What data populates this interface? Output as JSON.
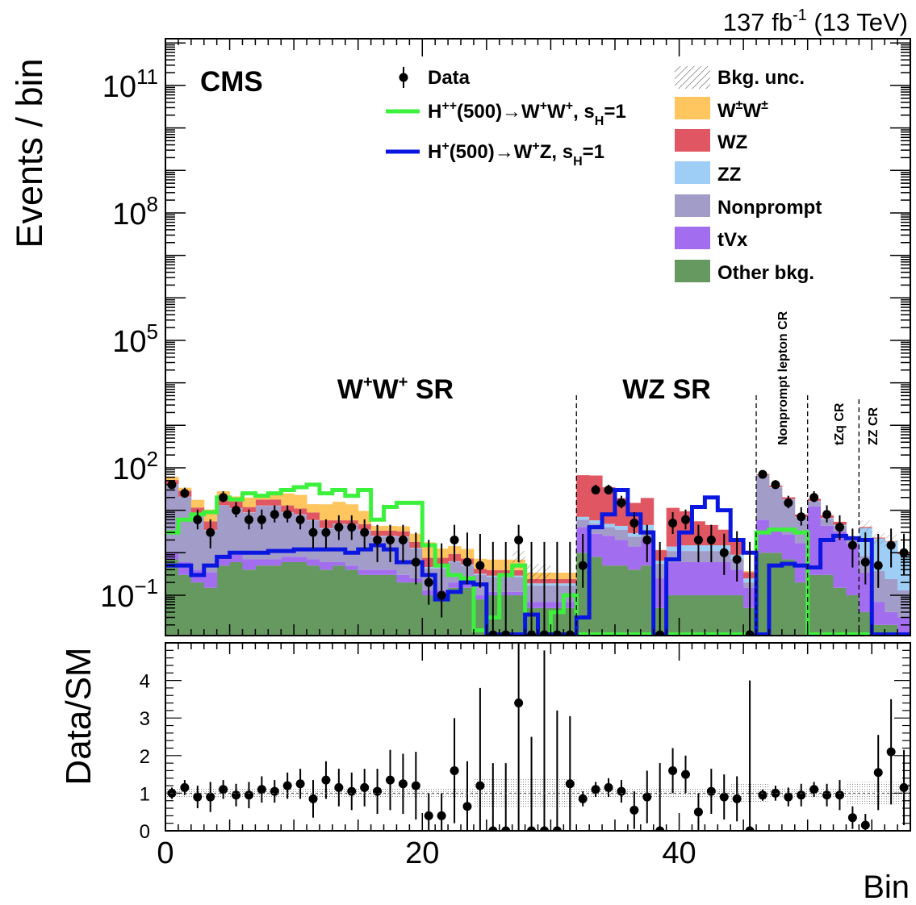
{
  "chart_data": {
    "type": "bar",
    "lumi_label": "137 fb",
    "lumi_sup": "-1",
    "lumi_energy": "(13 TeV)",
    "experiment": "CMS",
    "ylabel_top": "Events / bin",
    "ylabel_bottom": "Data/SM",
    "xlabel": "Bin",
    "x_ticks": [
      "0",
      "20",
      "40"
    ],
    "x_tick_values": [
      0,
      20,
      40
    ],
    "xlim": [
      0,
      58
    ],
    "top_ylim_log10": [
      -1.95,
      12.1
    ],
    "top_y_ticks": [
      {
        "base": "10",
        "exp": "11",
        "log": 11
      },
      {
        "base": "10",
        "exp": "8",
        "log": 8
      },
      {
        "base": "10",
        "exp": "5",
        "log": 5
      },
      {
        "base": "10",
        "exp": "2",
        "log": 2
      },
      {
        "base": "10",
        "exp": "−1",
        "log": -1
      }
    ],
    "ratio_ylim": [
      0,
      5
    ],
    "ratio_y_ticks": [
      "0",
      "1",
      "2",
      "3",
      "4"
    ],
    "colors": {
      "WpmWpm": "#ffc55e",
      "WZ": "#e05663",
      "ZZ": "#9ecdf5",
      "Nonprompt": "#a29cc9",
      "tVx": "#a36df0",
      "Other": "#65995f",
      "Hpp": "#3cf13c",
      "Hp": "#0a17e0"
    },
    "legend": {
      "data": "Data",
      "hpp": {
        "main": "H",
        "sup": "++",
        "rest": "(500)→W",
        "sup2": "+",
        "mid": "W",
        "sup3": "+",
        "tail": ", s",
        "sub": "H",
        "end": "=1"
      },
      "hp": {
        "main": "H",
        "sup": "+",
        "rest": "(500)→W",
        "sup2": "+",
        "mid": "Z, s",
        "sub": "H",
        "end": "=1"
      },
      "unc": "Bkg. unc.",
      "wpm": {
        "main": "W",
        "sup": "±",
        "mid": "W",
        "sup2": "±"
      },
      "wz": "WZ",
      "zz": "ZZ",
      "nonprompt": "Nonprompt",
      "tvx": "tVx",
      "other": "Other bkg."
    },
    "regions": {
      "wpwp": {
        "a": "W",
        "s1": "+",
        "b": "W",
        "s2": "+",
        "c": " SR"
      },
      "wz_sr": "WZ SR",
      "nonprompt_cr": "Nonprompt lepton CR",
      "tzq_cr": "tZq CR",
      "zz_cr": "ZZ CR"
    },
    "region_boundaries": [
      32,
      46,
      50,
      54
    ],
    "stack_order": [
      "Other",
      "tVx",
      "Nonprompt",
      "ZZ",
      "WZ",
      "WpmWpm"
    ],
    "series": [
      {
        "name": "Other bkg.",
        "key": "Other",
        "values": [
          0.7,
          0.3,
          0.2,
          0.15,
          0.5,
          0.6,
          0.4,
          0.5,
          0.5,
          0.6,
          0.6,
          0.5,
          0.4,
          0.5,
          0.4,
          0.3,
          0.3,
          0.3,
          0.2,
          0.2,
          0.1,
          0.1,
          0.15,
          0.15,
          0.08,
          0.1,
          0.1,
          0.1,
          0.05,
          0.05,
          0.05,
          0.05,
          1,
          0.8,
          0.5,
          0.5,
          0.4,
          0.5,
          0.05,
          0.1,
          0.1,
          0.1,
          0.1,
          0.1,
          0.1,
          0.05,
          1,
          1,
          0.7,
          0.2,
          0.3,
          0.3,
          0.15,
          0.1,
          0.04,
          0.02,
          0.02,
          0.01
        ]
      },
      {
        "name": "tVx",
        "key": "tVx",
        "values": [
          0.3,
          0.3,
          0.2,
          0.2,
          0.3,
          0.3,
          0.3,
          0.2,
          0.2,
          0.2,
          0.2,
          0.2,
          0.2,
          0.1,
          0.1,
          0.1,
          0.1,
          0.1,
          0.1,
          0.05,
          0.03,
          0.03,
          0.05,
          0.05,
          0.02,
          0.02,
          0.02,
          0.02,
          0.02,
          0.02,
          0.02,
          0.02,
          3,
          2,
          2,
          1.5,
          1,
          1.5,
          0.2,
          0.5,
          0.5,
          0.5,
          0.5,
          0.5,
          0.3,
          0.1,
          5,
          3,
          2,
          1.5,
          12,
          4,
          3,
          1.5,
          0.3,
          0.05,
          0.02,
          0.02
        ]
      },
      {
        "name": "Nonprompt",
        "key": "Nonprompt",
        "values": [
          40,
          20,
          8,
          3,
          12,
          10,
          8,
          12,
          12,
          8,
          7,
          5,
          3,
          4,
          4,
          3,
          2,
          2,
          2,
          1,
          0.3,
          0.3,
          0.4,
          0.3,
          0.2,
          0.15,
          0.15,
          0.15,
          0.1,
          0.1,
          0.1,
          0.1,
          2,
          2,
          1.5,
          1.5,
          1,
          1.5,
          0.3,
          0.5,
          0.5,
          0.5,
          0.5,
          0.5,
          0.3,
          0.05,
          60,
          30,
          15,
          5,
          4,
          2,
          1.2,
          0.4,
          0.5,
          0.3,
          0.2,
          0.1
        ]
      },
      {
        "name": "ZZ",
        "key": "ZZ",
        "values": [
          0.5,
          0.3,
          0.2,
          0.1,
          0.3,
          0.3,
          0.2,
          0.2,
          0.2,
          0.2,
          0.2,
          0.2,
          0.2,
          0.2,
          0.1,
          0.1,
          0.1,
          0.1,
          0.1,
          0.05,
          0.03,
          0.03,
          0.03,
          0.03,
          0.02,
          0.02,
          0.02,
          0.02,
          0.02,
          0.02,
          0.02,
          0.02,
          1,
          1,
          0.8,
          0.8,
          0.5,
          1,
          0.1,
          0.3,
          0.4,
          0.4,
          0.4,
          0.4,
          0.2,
          0.05,
          1,
          0.8,
          0.5,
          0.3,
          0.4,
          0.3,
          0.2,
          0.2,
          3,
          1.8,
          1.6,
          0.8
        ]
      },
      {
        "name": "WZ",
        "key": "WZ",
        "values": [
          10,
          8,
          3,
          2,
          5,
          5,
          3,
          5,
          5,
          4,
          3,
          3,
          2,
          1,
          1.2,
          1.2,
          0.8,
          0.8,
          0.8,
          0.5,
          0.3,
          0.3,
          0.3,
          0.2,
          0.1,
          0.1,
          0.1,
          0.1,
          0.05,
          0.05,
          0.05,
          0.05,
          60,
          60,
          30,
          15,
          12,
          15,
          0.5,
          10,
          8,
          4,
          3,
          2,
          1,
          0.1,
          4,
          3,
          2,
          1,
          2,
          1,
          0.8,
          0.2,
          0.2,
          0.1,
          0.05,
          0.05
        ]
      },
      {
        "name": "W±W±",
        "key": "WpmWpm",
        "values": [
          10,
          5,
          6,
          5,
          10,
          5,
          8,
          5,
          5,
          12,
          12,
          5,
          8,
          10,
          8,
          5,
          1,
          1,
          1,
          1,
          1,
          0.5,
          0.5,
          0.5,
          0.3,
          0.3,
          0.3,
          0.3,
          0.1,
          0.1,
          0.1,
          0.1,
          0.02,
          0.02,
          0.02,
          0.02,
          0.02,
          0.02,
          0.02,
          0.02,
          0.02,
          0.02,
          0.02,
          0.02,
          0.02,
          0.02,
          0.02,
          0.02,
          0.02,
          0.02,
          0.02,
          0.02,
          0.02,
          0.02,
          0.02,
          0.02,
          0.02,
          0.02
        ]
      }
    ],
    "signal_Hpp": [
      3,
      6,
      8,
      9,
      20,
      18,
      25,
      22,
      25,
      30,
      35,
      40,
      25,
      30,
      22,
      30,
      6,
      12,
      15,
      15,
      1.5,
      0.5,
      0.3,
      0.25,
      0.015,
      0.03,
      0.3,
      0.5,
      0.012,
      0.012,
      0.04,
      0.1,
      0.012,
      0.012,
      0.012,
      0.012,
      0.012,
      0.012,
      0.012,
      0.012,
      0.012,
      0.012,
      0.012,
      0.012,
      0.012,
      0.012,
      3,
      3.5,
      3.5,
      3,
      0.012,
      0.012,
      0.012,
      0.012,
      0.012,
      0.012,
      0.012,
      0.012
    ],
    "signal_Hp": [
      0.5,
      0.5,
      0.3,
      0.5,
      0.8,
      1,
      1,
      1,
      1.1,
      1.1,
      1.2,
      1.2,
      1.2,
      1.2,
      1,
      1.2,
      1.5,
      1.2,
      0.6,
      0.6,
      0.3,
      0.08,
      0.12,
      0.2,
      0.18,
      0.012,
      0.012,
      0.012,
      0.035,
      0.012,
      0.012,
      0.012,
      0.03,
      4,
      8,
      30,
      8,
      3,
      0.012,
      0.7,
      3,
      12,
      20,
      10,
      2,
      1,
      0.012,
      0.5,
      0.55,
      0.5,
      0.45,
      2,
      2.5,
      2.2,
      2,
      0.012,
      0.012,
      0.012
    ],
    "data": [
      40,
      25,
      6,
      3,
      20,
      10,
      6,
      6,
      8,
      8,
      6,
      3,
      3,
      4,
      4,
      3,
      2,
      2,
      2,
      0.6,
      0.2,
      0.1,
      2,
      0.6,
      0.5,
      0.0,
      0.0,
      2.0,
      0.0,
      0.0,
      0.0,
      0.0,
      0.5,
      30,
      30,
      15,
      5,
      2,
      0.0,
      5,
      6,
      2,
      2,
      1,
      0.7,
      0.0,
      70,
      40,
      15,
      7,
      20,
      8,
      4,
      1.5,
      0.6,
      0.5,
      1.5,
      1
    ],
    "data_zero_bins": [
      25,
      26,
      28,
      29,
      30,
      31,
      38,
      45
    ],
    "ratio": [
      1.0,
      1.15,
      0.9,
      0.9,
      1.1,
      0.95,
      0.95,
      1.1,
      1.05,
      1.2,
      1.25,
      0.85,
      1.35,
      1.15,
      1.05,
      1.15,
      1.05,
      1.35,
      1.25,
      1.2,
      0.4,
      0.4,
      1.6,
      0.65,
      1.2,
      0,
      0,
      3.4,
      0,
      0,
      0,
      1.25,
      0.85,
      1.1,
      1.15,
      1.05,
      0.55,
      0.9,
      0,
      1.6,
      1.5,
      0.5,
      1.05,
      0.9,
      0.85,
      0,
      0.95,
      1.0,
      0.9,
      0.95,
      1.1,
      0.95,
      0.95,
      0.35,
      0.15,
      1.55,
      2.1,
      1.15
    ],
    "ratio_err": [
      0.15,
      0.2,
      0.3,
      0.4,
      0.25,
      0.3,
      0.35,
      0.35,
      0.3,
      0.35,
      0.4,
      0.5,
      0.5,
      0.5,
      0.5,
      0.5,
      0.6,
      0.8,
      0.8,
      0.9,
      0.6,
      0.6,
      1.4,
      1.2,
      2.6,
      1.8,
      1.8,
      4,
      2.5,
      4.8,
      3.2,
      1.8,
      0.2,
      0.2,
      0.25,
      0.3,
      0.5,
      0.7,
      1.8,
      0.6,
      0.5,
      0.5,
      0.6,
      0.6,
      0.6,
      4,
      0.15,
      0.2,
      0.25,
      0.3,
      0.2,
      0.3,
      0.4,
      0.3,
      0.3,
      1,
      1.4,
      1
    ],
    "unc_bins": [
      27,
      28,
      29
    ]
  }
}
